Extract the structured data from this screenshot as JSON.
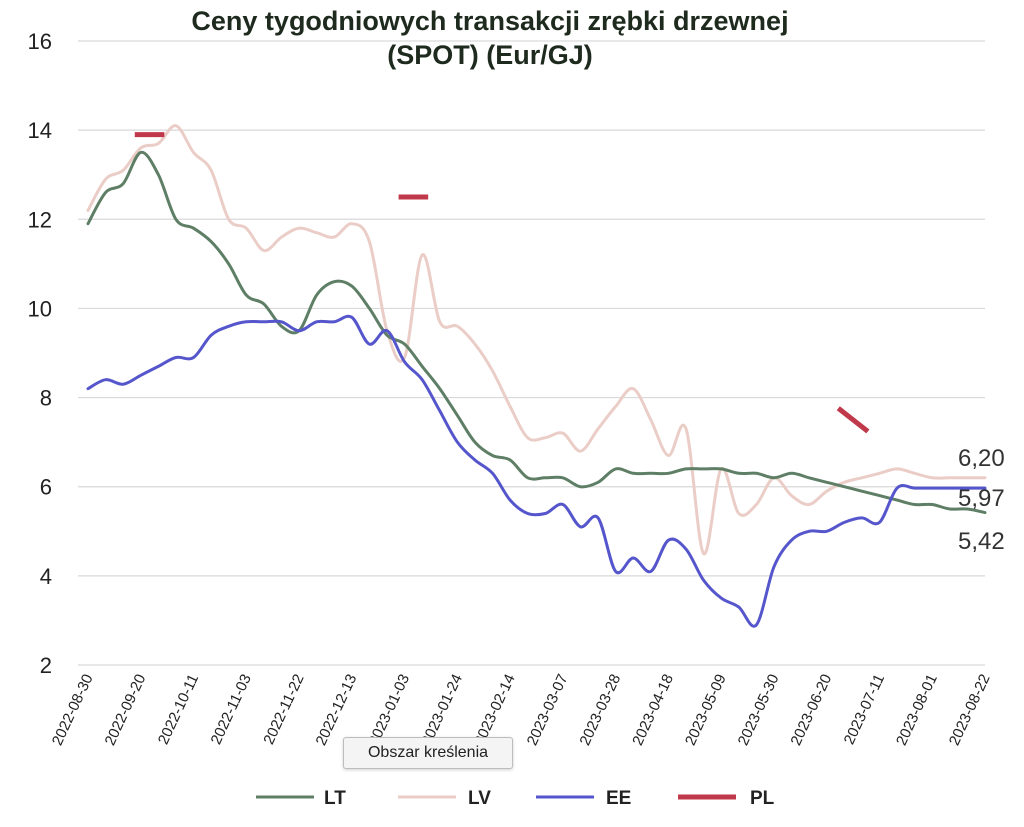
{
  "chart_data": {
    "type": "line",
    "title_line1": "Ceny tygodniowych transakcji zrębki drzewnej",
    "title_line2": "(SPOT) (Eur/GJ)",
    "ylim": [
      2,
      16
    ],
    "yticks": [
      2,
      4,
      6,
      8,
      10,
      12,
      14,
      16
    ],
    "grid": true,
    "legend_position": "bottom",
    "x_dates": [
      "2022-08-30",
      "2022-09-06",
      "2022-09-13",
      "2022-09-20",
      "2022-09-27",
      "2022-10-04",
      "2022-10-11",
      "2022-10-18",
      "2022-10-25",
      "2022-11-01",
      "2022-11-08",
      "2022-11-15",
      "2022-11-22",
      "2022-11-29",
      "2022-12-06",
      "2022-12-13",
      "2022-12-20",
      "2022-12-27",
      "2023-01-03",
      "2023-01-10",
      "2023-01-17",
      "2023-01-24",
      "2023-01-31",
      "2023-02-07",
      "2023-02-14",
      "2023-02-21",
      "2023-02-28",
      "2023-03-07",
      "2023-03-14",
      "2023-03-21",
      "2023-03-28",
      "2023-04-04",
      "2023-04-11",
      "2023-04-18",
      "2023-04-25",
      "2023-05-02",
      "2023-05-09",
      "2023-05-16",
      "2023-05-23",
      "2023-05-30",
      "2023-06-06",
      "2023-06-13",
      "2023-06-20",
      "2023-06-27",
      "2023-07-04",
      "2023-07-11",
      "2023-07-18",
      "2023-07-25",
      "2023-08-01",
      "2023-08-08",
      "2023-08-15",
      "2023-08-22"
    ],
    "x_tick_labels": [
      "2022-08-30",
      "2022-09-20",
      "2022-10-11",
      "2022-11-03",
      "2022-11-22",
      "2022-12-13",
      "2023-01-03",
      "2023-01-24",
      "2023-02-14",
      "2023-03-07",
      "2023-03-28",
      "2023-04-18",
      "2023-05-09",
      "2023-05-30",
      "2023-06-20",
      "2023-07-11",
      "2023-08-01",
      "2023-08-22"
    ],
    "series": [
      {
        "name": "LT",
        "color": "#5e7f66",
        "values": [
          11.9,
          12.6,
          12.8,
          13.5,
          13.0,
          12.0,
          11.8,
          11.5,
          11.0,
          10.3,
          10.1,
          9.6,
          9.5,
          10.3,
          10.6,
          10.5,
          10.0,
          9.4,
          9.2,
          8.7,
          8.2,
          7.6,
          7.0,
          6.7,
          6.6,
          6.2,
          6.2,
          6.2,
          6.0,
          6.1,
          6.4,
          6.3,
          6.3,
          6.3,
          6.4,
          6.4,
          6.4,
          6.3,
          6.3,
          6.2,
          6.3,
          6.2,
          6.1,
          6.0,
          5.9,
          5.8,
          5.7,
          5.6,
          5.6,
          5.5,
          5.5,
          5.42
        ]
      },
      {
        "name": "LV",
        "color": "#ebcdc7",
        "values": [
          12.2,
          12.9,
          13.1,
          13.6,
          13.7,
          14.1,
          13.5,
          13.1,
          12.0,
          11.8,
          11.3,
          11.6,
          11.8,
          11.7,
          11.6,
          11.9,
          11.5,
          9.5,
          8.9,
          11.2,
          9.7,
          9.6,
          9.2,
          8.6,
          7.8,
          7.1,
          7.1,
          7.2,
          6.8,
          7.3,
          7.8,
          8.2,
          7.5,
          6.7,
          7.3,
          4.5,
          6.4,
          5.4,
          5.6,
          6.2,
          5.8,
          5.6,
          5.9,
          6.1,
          6.2,
          6.3,
          6.4,
          6.3,
          6.2,
          6.2,
          6.2,
          6.2
        ]
      },
      {
        "name": "EE",
        "color": "#5656cc",
        "values": [
          8.2,
          8.4,
          8.3,
          8.5,
          8.7,
          8.9,
          8.9,
          9.4,
          9.6,
          9.7,
          9.7,
          9.7,
          9.5,
          9.7,
          9.7,
          9.8,
          9.2,
          9.5,
          8.8,
          8.4,
          7.7,
          7.0,
          6.6,
          6.3,
          5.7,
          5.4,
          5.4,
          5.6,
          5.1,
          5.3,
          4.1,
          4.4,
          4.1,
          4.8,
          4.6,
          3.9,
          3.5,
          3.3,
          2.9,
          4.2,
          4.8,
          5.0,
          5.0,
          5.2,
          5.3,
          5.2,
          5.97,
          5.97,
          5.97,
          5.97,
          5.97,
          5.97
        ]
      },
      {
        "name": "PL",
        "color": "#c0394b",
        "values": [
          null,
          null,
          null,
          13.9,
          13.9,
          null,
          null,
          null,
          null,
          null,
          null,
          null,
          null,
          null,
          null,
          null,
          null,
          null,
          12.5,
          12.5,
          null,
          null,
          null,
          null,
          null,
          null,
          null,
          null,
          null,
          null,
          null,
          null,
          null,
          null,
          null,
          null,
          null,
          null,
          null,
          null,
          null,
          null,
          null,
          7.7,
          7.3,
          null,
          null,
          null,
          null,
          null,
          null,
          null
        ]
      }
    ],
    "end_labels": [
      "6,20",
      "5,97",
      "5,42"
    ]
  },
  "tooltip_text": "Obszar kreślenia"
}
